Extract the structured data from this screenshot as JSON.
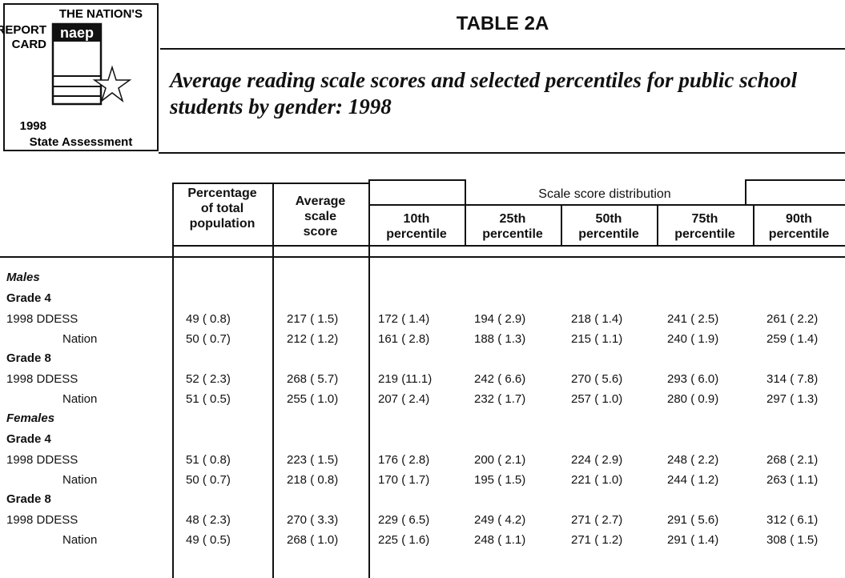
{
  "logo": {
    "line1": "THE NATION'S",
    "line2": "REPORT",
    "line3": "CARD",
    "brand": "naep",
    "year": "1998",
    "subtitle": "State Assessment"
  },
  "header": {
    "label": "TABLE 2A",
    "title": "Average reading scale scores and selected percentiles for public school students by gender: 1998"
  },
  "table": {
    "columns": [
      "Percentage\nof total\npopulation",
      "Average\nscale\nscore"
    ],
    "group": "Scale score distribution",
    "percentiles": [
      "10th\npercentile",
      "25th\npercentile",
      "50th\npercentile",
      "75th\npercentile",
      "90th\npercentile"
    ],
    "sections": [
      {
        "name": "Males",
        "grades": [
          {
            "name": "Grade 4",
            "rows": [
              {
                "label": "1998 DDESS",
                "cells": [
                  "49 ( 0.8)",
                  "217 ( 1.5)",
                  "172 ( 1.4)",
                  "194 ( 2.9)",
                  "218 ( 1.4)",
                  "241 ( 2.5)",
                  "261 ( 2.2)"
                ]
              },
              {
                "label": "Nation",
                "cells": [
                  "50 ( 0.7)",
                  "212 ( 1.2)",
                  "161 ( 2.8)",
                  "188 ( 1.3)",
                  "215 ( 1.1)",
                  "240 ( 1.9)",
                  "259 ( 1.4)"
                ]
              }
            ]
          },
          {
            "name": "Grade 8",
            "rows": [
              {
                "label": "1998 DDESS",
                "cells": [
                  "52 ( 2.3)",
                  "268 ( 5.7)",
                  "219 (11.1)",
                  "242 ( 6.6)",
                  "270 ( 5.6)",
                  "293 ( 6.0)",
                  "314 ( 7.8)"
                ]
              },
              {
                "label": "Nation",
                "cells": [
                  "51 ( 0.5)",
                  "255 ( 1.0)",
                  "207 ( 2.4)",
                  "232 ( 1.7)",
                  "257 ( 1.0)",
                  "280 ( 0.9)",
                  "297 ( 1.3)"
                ]
              }
            ]
          }
        ]
      },
      {
        "name": "Females",
        "grades": [
          {
            "name": "Grade 4",
            "rows": [
              {
                "label": "1998 DDESS",
                "cells": [
                  "51 ( 0.8)",
                  "223 ( 1.5)",
                  "176 ( 2.8)",
                  "200 ( 2.1)",
                  "224 ( 2.9)",
                  "248 ( 2.2)",
                  "268 ( 2.1)"
                ]
              },
              {
                "label": "Nation",
                "cells": [
                  "50 ( 0.7)",
                  "218 ( 0.8)",
                  "170 ( 1.7)",
                  "195 ( 1.5)",
                  "221 ( 1.0)",
                  "244 ( 1.2)",
                  "263 ( 1.1)"
                ]
              }
            ]
          },
          {
            "name": "Grade 8",
            "rows": [
              {
                "label": "1998 DDESS",
                "cells": [
                  "48 ( 2.3)",
                  "270 ( 3.3)",
                  "229 ( 6.5)",
                  "249 ( 4.2)",
                  "271 ( 2.7)",
                  "291 ( 5.6)",
                  "312 ( 6.1)"
                ]
              },
              {
                "label": "Nation",
                "cells": [
                  "49 ( 0.5)",
                  "268 ( 1.0)",
                  "225 ( 1.6)",
                  "248 ( 1.1)",
                  "271 ( 1.2)",
                  "291 ( 1.4)",
                  "308 ( 1.5)"
                ]
              }
            ]
          }
        ]
      }
    ]
  }
}
